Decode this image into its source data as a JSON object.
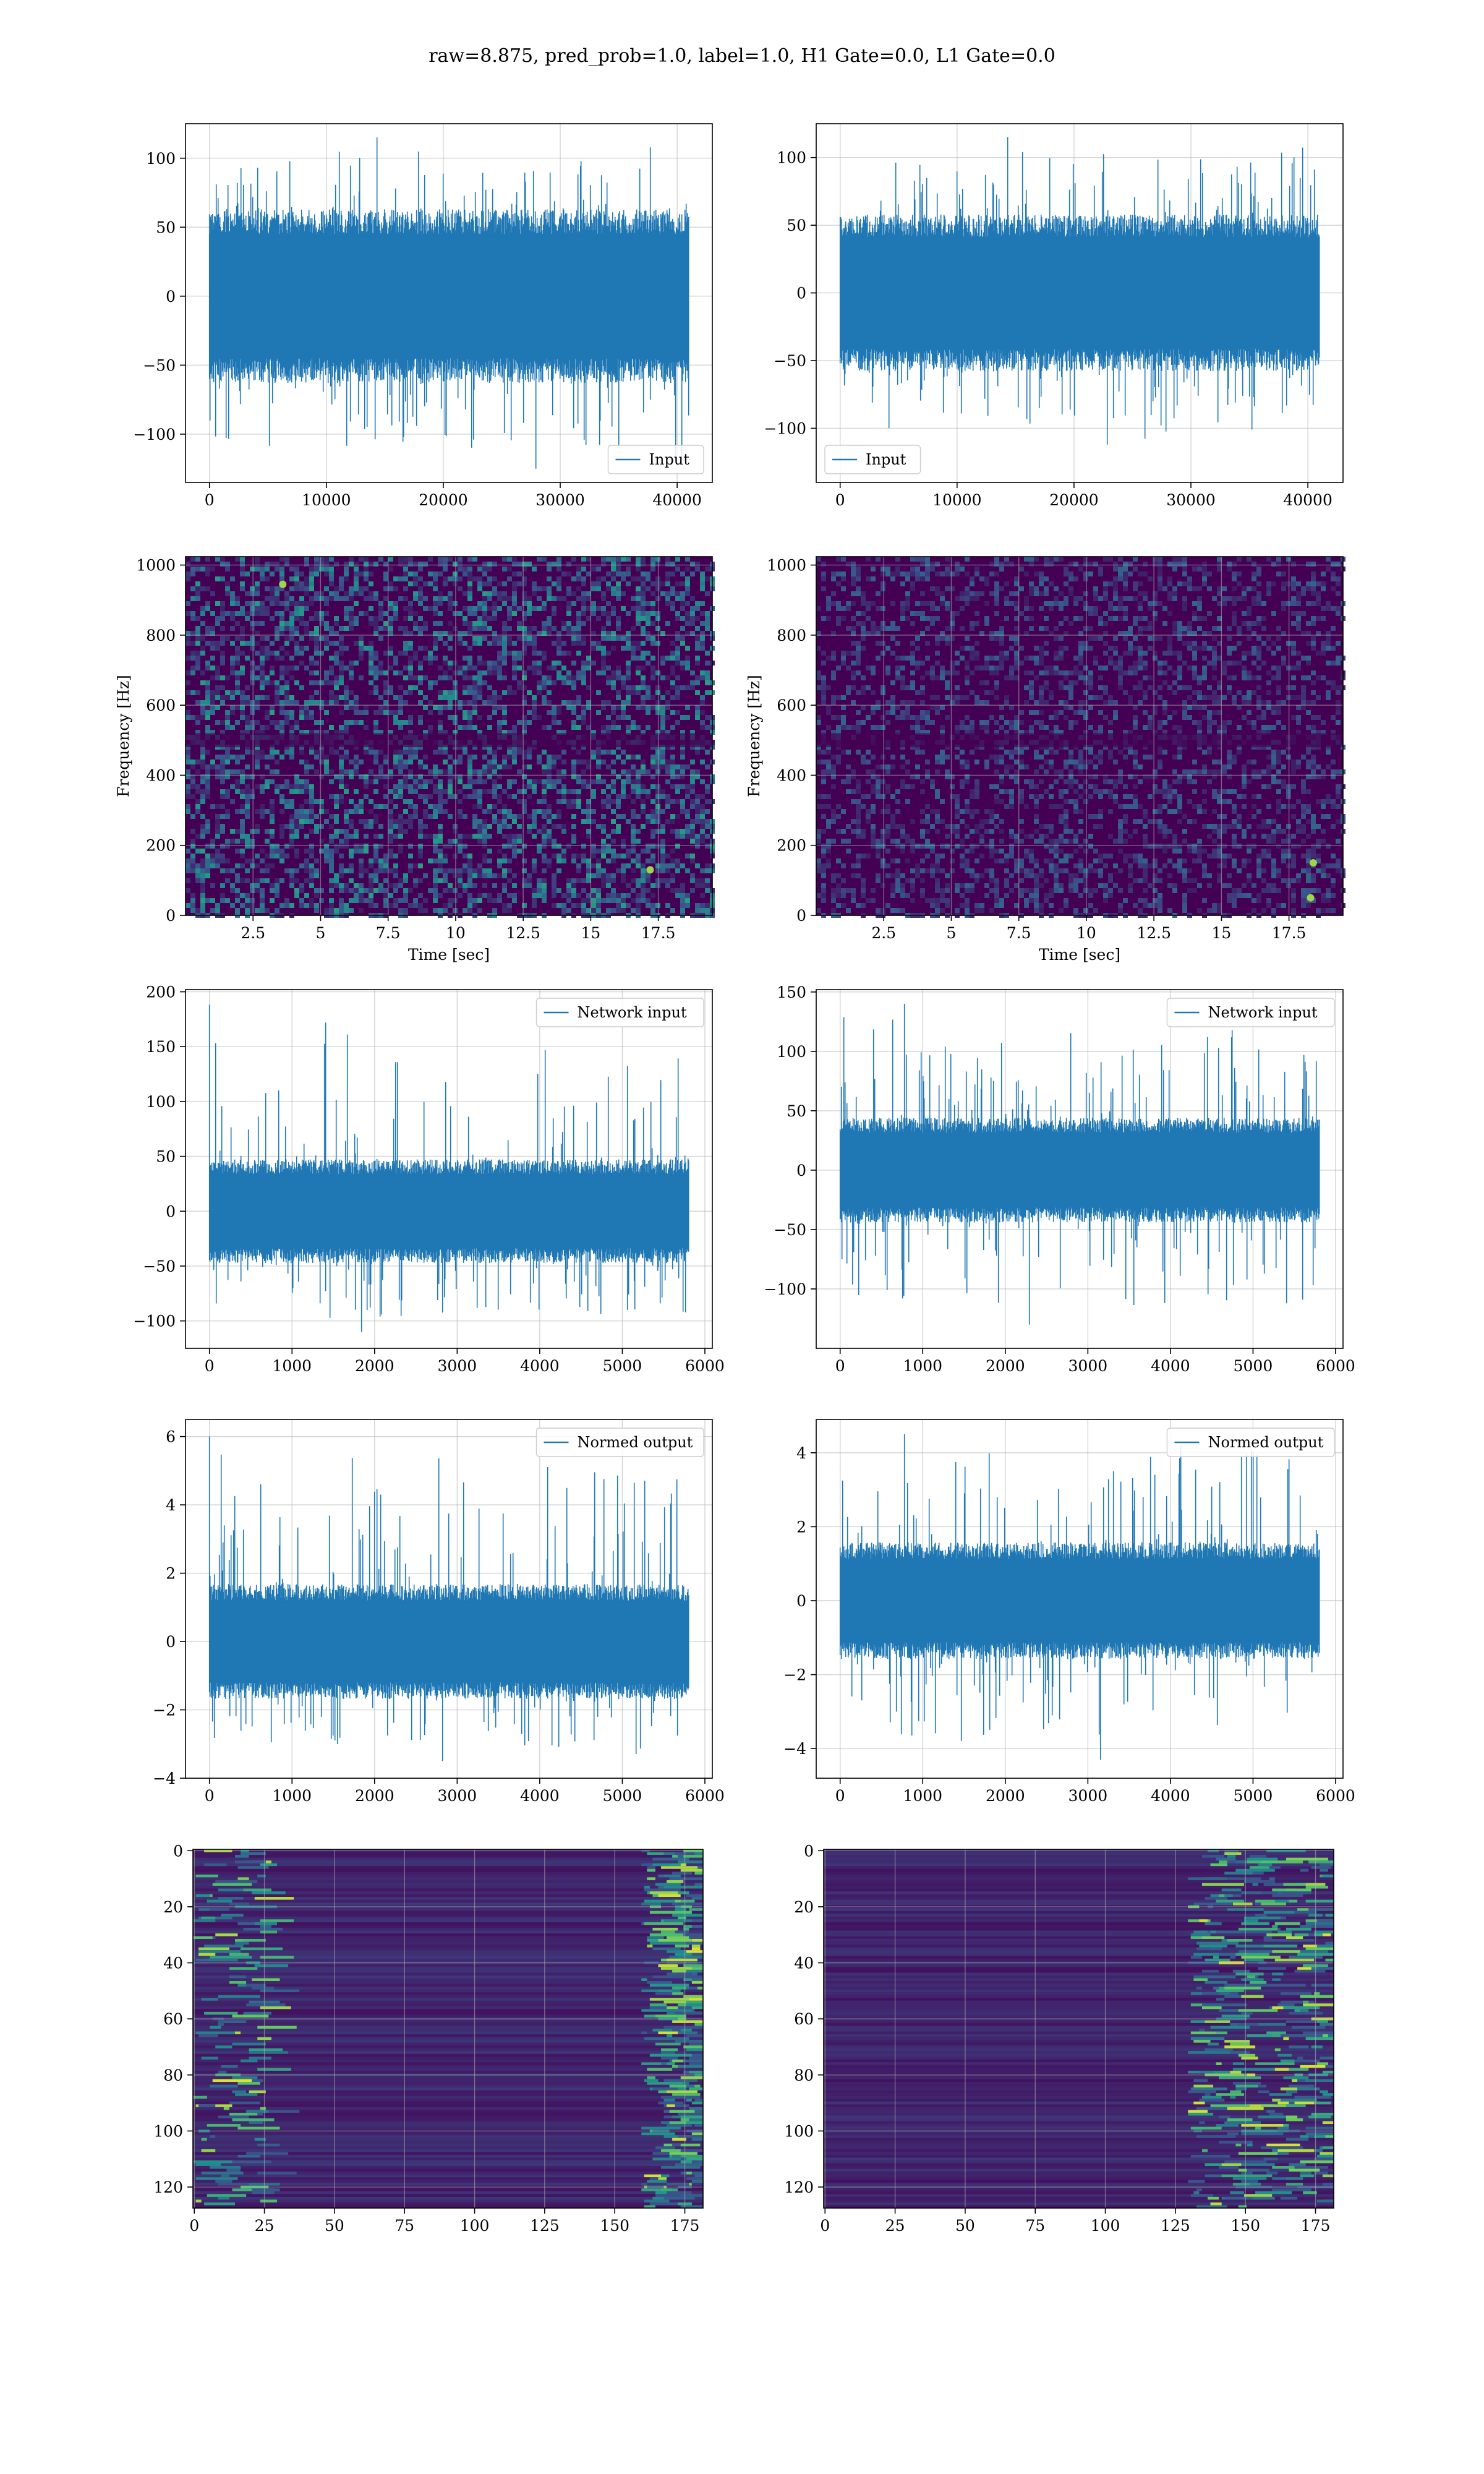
{
  "figure_title": "raw=8.875, pred_prob=1.0, label=1.0, H1 Gate=0.0, L1 Gate=0.0",
  "colors": {
    "line": "#1f77b4",
    "grid": "#b0b0b0",
    "viridis_low": "#440154",
    "viridis_mid": "#21918c",
    "viridis_high": "#fde725"
  },
  "chart_data": [
    {
      "id": "input-h1",
      "type": "line",
      "title": "",
      "xlabel": "",
      "ylabel": "",
      "series": [
        {
          "name": "Input",
          "n_points": 40960,
          "amplitude_core": 60,
          "extreme_min": -125,
          "extreme_max": 115
        }
      ],
      "legend": "lower-right",
      "grid": true,
      "xlim": [
        -2048,
        43008
      ],
      "ylim": [
        -135,
        125
      ],
      "xticks": [
        0,
        10000,
        20000,
        30000,
        40000
      ],
      "yticks": [
        -100,
        -50,
        0,
        50,
        100
      ]
    },
    {
      "id": "input-l1",
      "type": "line",
      "title": "",
      "xlabel": "",
      "ylabel": "",
      "series": [
        {
          "name": "Input",
          "n_points": 40960,
          "amplitude_core": 55,
          "extreme_min": -112,
          "extreme_max": 115
        }
      ],
      "legend": "lower-left",
      "grid": true,
      "xlim": [
        -2048,
        43008
      ],
      "ylim": [
        -140,
        125
      ],
      "xticks": [
        0,
        10000,
        20000,
        30000,
        40000
      ],
      "yticks": [
        -100,
        -50,
        0,
        50,
        100
      ]
    },
    {
      "id": "spectrogram-h1",
      "type": "heatmap",
      "title": "",
      "xlabel": "Time [sec]",
      "ylabel": "Frequency [Hz]",
      "colormap": "viridis",
      "grid": true,
      "xlim": [
        0,
        19.5
      ],
      "ylim": [
        0,
        1024
      ],
      "xticks": [
        2.5,
        5.0,
        7.5,
        10.0,
        12.5,
        15.0,
        17.5
      ],
      "yticks": [
        0,
        200,
        400,
        600,
        800,
        1000
      ],
      "hot_spots": [
        {
          "x": 3.6,
          "y": 945
        },
        {
          "x": 17.2,
          "y": 130
        }
      ]
    },
    {
      "id": "spectrogram-l1",
      "type": "heatmap",
      "title": "",
      "xlabel": "Time [sec]",
      "ylabel": "Frequency [Hz]",
      "colormap": "viridis",
      "grid": true,
      "xlim": [
        0,
        19.5
      ],
      "ylim": [
        0,
        1024
      ],
      "xticks": [
        2.5,
        5.0,
        7.5,
        10.0,
        12.5,
        15.0,
        17.5
      ],
      "yticks": [
        0,
        200,
        400,
        600,
        800,
        1000
      ],
      "hot_spots": [
        {
          "x": 18.3,
          "y": 50
        },
        {
          "x": 18.4,
          "y": 150
        }
      ]
    },
    {
      "id": "network-input-h1",
      "type": "line",
      "title": "",
      "xlabel": "",
      "ylabel": "",
      "series": [
        {
          "name": "Network input",
          "n_points": 5800,
          "amplitude_core": 45,
          "extreme_min": -110,
          "extreme_max": 188,
          "spike_x": 0
        }
      ],
      "legend": "upper-right",
      "grid": true,
      "xlim": [
        -290,
        6090
      ],
      "ylim": [
        -125,
        202
      ],
      "xticks": [
        0,
        1000,
        2000,
        3000,
        4000,
        5000,
        6000
      ],
      "yticks": [
        -100,
        -50,
        0,
        50,
        100,
        150,
        200
      ]
    },
    {
      "id": "network-input-l1",
      "type": "line",
      "title": "",
      "xlabel": "",
      "ylabel": "",
      "series": [
        {
          "name": "Network input",
          "n_points": 5800,
          "amplitude_core": 42,
          "extreme_min": -130,
          "extreme_max": 140,
          "spike_x": 780
        }
      ],
      "legend": "upper-right",
      "grid": true,
      "xlim": [
        -290,
        6090
      ],
      "ylim": [
        -150,
        152
      ],
      "xticks": [
        0,
        1000,
        2000,
        3000,
        4000,
        5000,
        6000
      ],
      "yticks": [
        -100,
        -50,
        0,
        50,
        100,
        150
      ]
    },
    {
      "id": "normed-output-h1",
      "type": "line",
      "title": "",
      "xlabel": "",
      "ylabel": "",
      "series": [
        {
          "name": "Normed output",
          "n_points": 5800,
          "amplitude_core": 1.6,
          "extreme_min": -3.5,
          "extreme_max": 6.0,
          "spike_x": 0
        }
      ],
      "legend": "upper-right",
      "grid": true,
      "xlim": [
        -290,
        6090
      ],
      "ylim": [
        -4.0,
        6.5
      ],
      "xticks": [
        0,
        1000,
        2000,
        3000,
        4000,
        5000,
        6000
      ],
      "yticks": [
        -4,
        -2,
        0,
        2,
        4,
        6
      ]
    },
    {
      "id": "normed-output-l1",
      "type": "line",
      "title": "",
      "xlabel": "",
      "ylabel": "",
      "series": [
        {
          "name": "Normed output",
          "n_points": 5800,
          "amplitude_core": 1.5,
          "extreme_min": -4.3,
          "extreme_max": 4.5,
          "spike_x": 780
        }
      ],
      "legend": "upper-right",
      "grid": true,
      "xlim": [
        -290,
        6090
      ],
      "ylim": [
        -4.8,
        4.9
      ],
      "xticks": [
        0,
        1000,
        2000,
        3000,
        4000,
        5000,
        6000
      ],
      "yticks": [
        -4,
        -2,
        0,
        2,
        4
      ]
    },
    {
      "id": "feature-map-h1",
      "type": "heatmap",
      "title": "",
      "xlabel": "",
      "ylabel": "",
      "colormap": "viridis",
      "grid": true,
      "rows": 128,
      "cols": 182,
      "y_inverted": true,
      "xlim": [
        -0.5,
        181.5
      ],
      "ylim": [
        127.5,
        -0.5
      ],
      "xticks": [
        0,
        25,
        50,
        75,
        100,
        125,
        150,
        175
      ],
      "yticks": [
        0,
        20,
        40,
        60,
        80,
        100,
        120
      ],
      "activity": "left edge and right edge (cols 165-181) bright"
    },
    {
      "id": "feature-map-l1",
      "type": "heatmap",
      "title": "",
      "xlabel": "",
      "ylabel": "",
      "colormap": "viridis",
      "grid": true,
      "rows": 128,
      "cols": 182,
      "y_inverted": true,
      "xlim": [
        -0.5,
        181.5
      ],
      "ylim": [
        127.5,
        -0.5
      ],
      "xticks": [
        0,
        25,
        50,
        75,
        100,
        125,
        150,
        175
      ],
      "yticks": [
        0,
        20,
        40,
        60,
        80,
        100,
        120
      ],
      "activity": "right region (cols 135-181) bright"
    }
  ]
}
